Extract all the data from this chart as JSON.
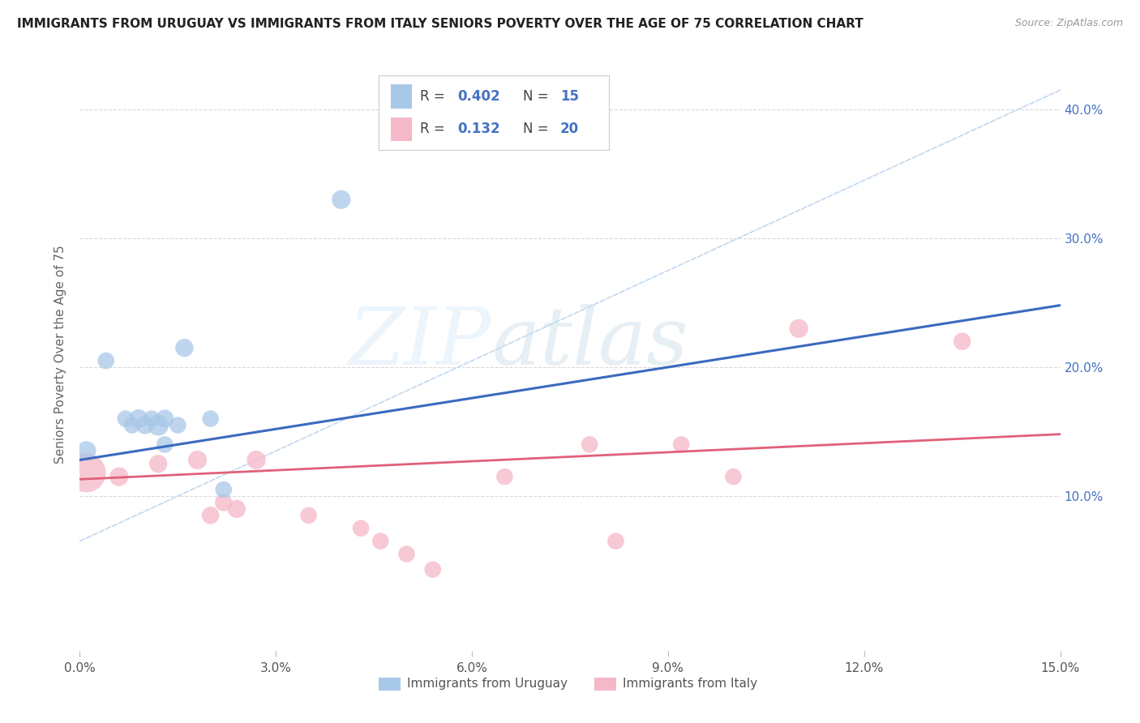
{
  "title": "IMMIGRANTS FROM URUGUAY VS IMMIGRANTS FROM ITALY SENIORS POVERTY OVER THE AGE OF 75 CORRELATION CHART",
  "source": "Source: ZipAtlas.com",
  "ylabel": "Seniors Poverty Over the Age of 75",
  "xlim": [
    0.0,
    0.15
  ],
  "ylim": [
    -0.02,
    0.44
  ],
  "xtick_vals": [
    0.0,
    0.03,
    0.06,
    0.09,
    0.12,
    0.15
  ],
  "xtick_labels": [
    "0.0%",
    "3.0%",
    "6.0%",
    "9.0%",
    "12.0%",
    "15.0%"
  ],
  "right_ytick_vals": [
    0.1,
    0.2,
    0.3,
    0.4
  ],
  "right_ytick_labels": [
    "10.0%",
    "20.0%",
    "30.0%",
    "40.0%"
  ],
  "uruguay_R": "0.402",
  "uruguay_N": "15",
  "italy_R": "0.132",
  "italy_N": "20",
  "uruguay_color": "#a8c8e8",
  "italy_color": "#f5b8c8",
  "uruguay_line_color": "#3a6abf",
  "italy_line_color": "#e0607a",
  "trend_line_color": "#c0d8f0",
  "background_color": "#ffffff",
  "watermark_zip": "ZIP",
  "watermark_atlas": "atlas",
  "uruguay_x": [
    0.001,
    0.004,
    0.007,
    0.008,
    0.009,
    0.01,
    0.011,
    0.012,
    0.013,
    0.013,
    0.015,
    0.016,
    0.02,
    0.022,
    0.04
  ],
  "uruguay_y": [
    0.135,
    0.205,
    0.16,
    0.155,
    0.16,
    0.155,
    0.16,
    0.155,
    0.16,
    0.14,
    0.155,
    0.215,
    0.16,
    0.105,
    0.33
  ],
  "uruguay_sizes": [
    300,
    220,
    220,
    220,
    280,
    260,
    220,
    350,
    260,
    220,
    220,
    260,
    220,
    220,
    280
  ],
  "italy_x": [
    0.001,
    0.006,
    0.012,
    0.018,
    0.02,
    0.022,
    0.024,
    0.027,
    0.035,
    0.043,
    0.046,
    0.05,
    0.054,
    0.065,
    0.078,
    0.082,
    0.092,
    0.1,
    0.11,
    0.135
  ],
  "italy_y": [
    0.118,
    0.115,
    0.125,
    0.128,
    0.085,
    0.095,
    0.09,
    0.128,
    0.085,
    0.075,
    0.065,
    0.055,
    0.043,
    0.115,
    0.14,
    0.065,
    0.14,
    0.115,
    0.23,
    0.22
  ],
  "italy_sizes": [
    1200,
    280,
    260,
    280,
    240,
    240,
    260,
    280,
    220,
    220,
    220,
    220,
    220,
    220,
    220,
    220,
    220,
    220,
    280,
    240
  ],
  "uru_line_x0": 0.0,
  "uru_line_y0": 0.128,
  "uru_line_x1": 0.15,
  "uru_line_y1": 0.248,
  "ita_line_x0": 0.0,
  "ita_line_y0": 0.113,
  "ita_line_x1": 0.15,
  "ita_line_y1": 0.148,
  "dash_line_x0": 0.0,
  "dash_line_y0": 0.065,
  "dash_line_x1": 0.15,
  "dash_line_y1": 0.415
}
